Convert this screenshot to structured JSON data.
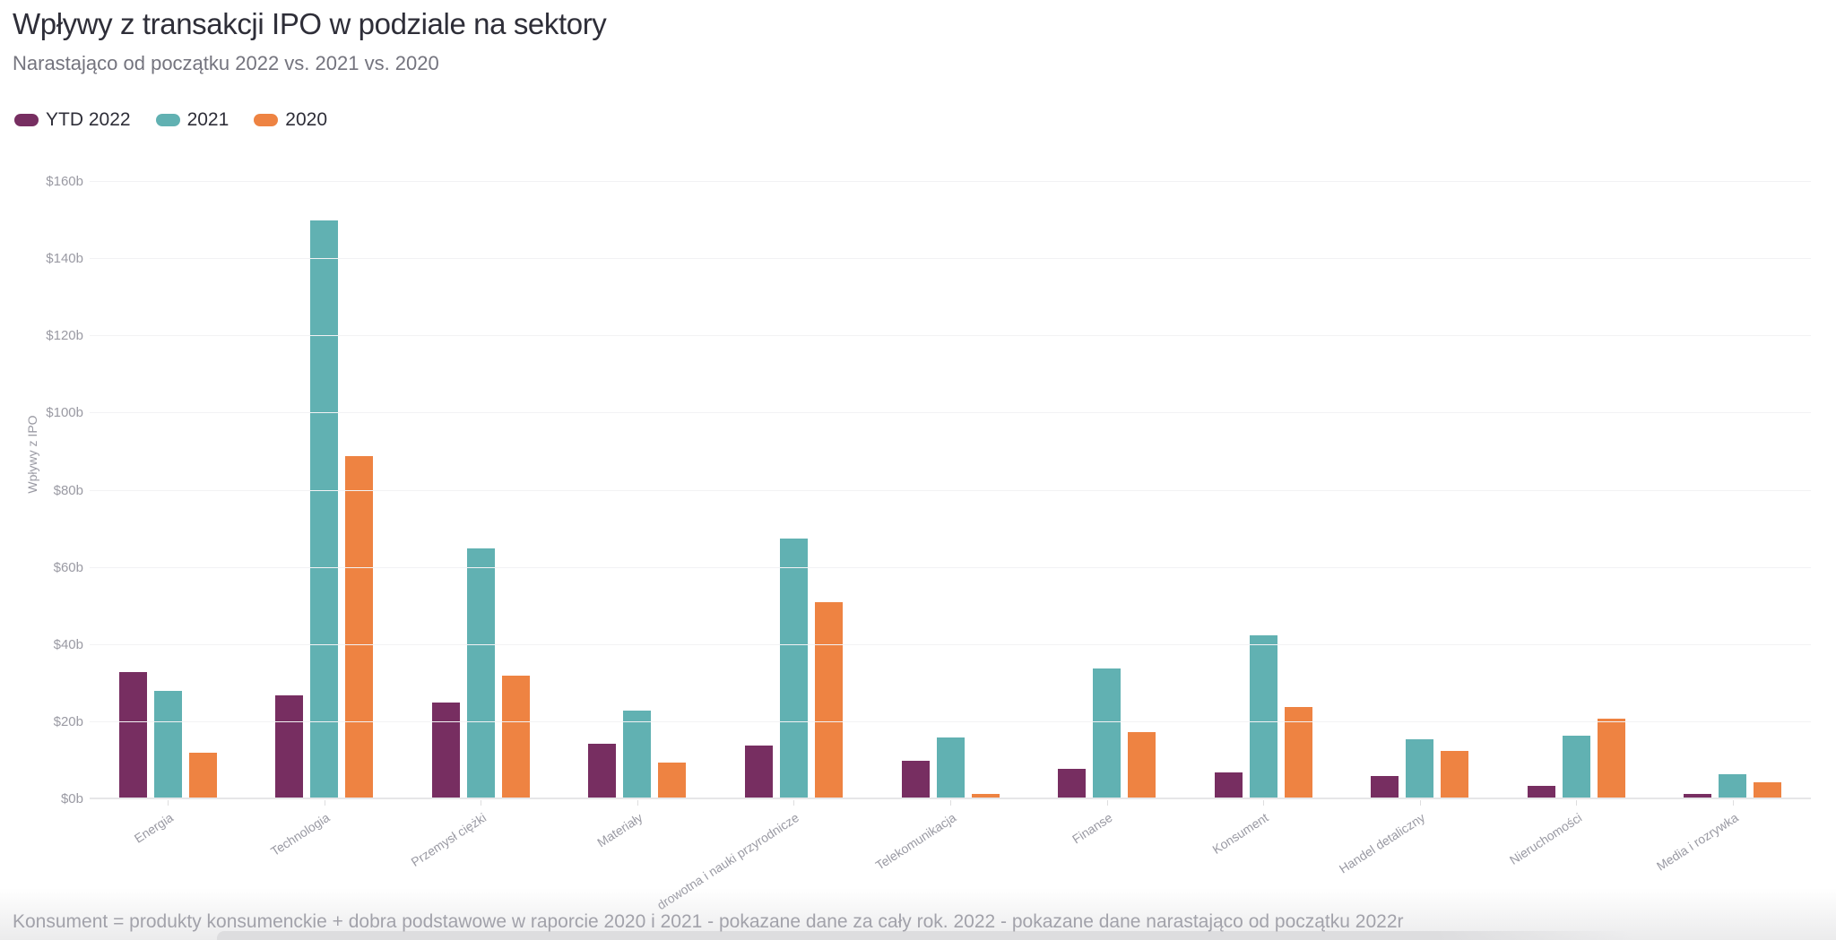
{
  "chart_data": {
    "type": "bar",
    "title": "Wpływy z transakcji IPO w podziale na sektory",
    "subtitle": "Narastająco od początku 2022 vs. 2021 vs. 2020",
    "ylabel": "Wpływy z IPO",
    "ylim": [
      0,
      160
    ],
    "y_tick_step": 20,
    "y_ticks": [
      "$0b",
      "$20b",
      "$40b",
      "$60b",
      "$80b",
      "$100b",
      "$120b",
      "$140b",
      "$160b"
    ],
    "grid": "horizontal",
    "legend_position": "top",
    "x_label_rotation_deg": -33,
    "categories": [
      "Energia",
      "Technologia",
      "Przemysł ciężki",
      "Materiały",
      "drowotna i nauki przyrodnicze",
      "Telekomunikacja",
      "Finanse",
      "Konsument",
      "Handel detaliczny",
      "Nieruchomości",
      "Media i rozrywka"
    ],
    "series": [
      {
        "name": "YTD 2022",
        "color": "#772e61",
        "values": [
          33,
          27,
          25,
          14.5,
          14,
          10,
          8,
          7,
          6,
          3.5,
          1.5
        ]
      },
      {
        "name": "2021",
        "color": "#61b1b2",
        "values": [
          28,
          150,
          65,
          23,
          67.5,
          16,
          34,
          42.5,
          15.5,
          16.5,
          6.5
        ]
      },
      {
        "name": "2020",
        "color": "#ee8342",
        "values": [
          12,
          89,
          32,
          9.5,
          51,
          1.5,
          17.5,
          24,
          12.5,
          21,
          4.5
        ]
      }
    ],
    "footnote": "Konsument = produkty konsumenckie + dobra podstawowe w raporcie 2020 i 2021 - pokazane dane za cały rok. 2022 - pokazane dane narastająco od początku 2022r"
  }
}
